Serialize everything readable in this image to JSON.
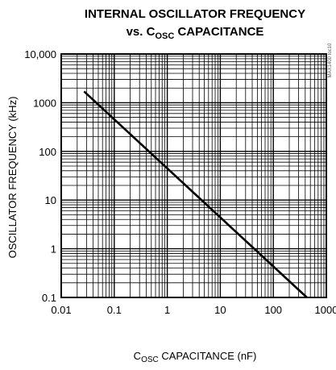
{
  "chart_data": {
    "type": "line",
    "title_line1": "INTERNAL OSCILLATOR FREQUENCY",
    "title_line2_prefix": "vs. C",
    "title_line2_sub": "OSC",
    "title_line2_suffix": " CAPACITANCE",
    "xlabel_prefix": "C",
    "xlabel_sub": "OSC",
    "xlabel_suffix": " CAPACITANCE (nF)",
    "ylabel": "OSCILLATOR FREQUENCY (kHz)",
    "x_scale": "log",
    "y_scale": "log",
    "xlim": [
      0.01,
      1000
    ],
    "ylim": [
      0.1,
      10000
    ],
    "x_ticks": [
      {
        "value": 0.01,
        "label": "0.01"
      },
      {
        "value": 0.1,
        "label": "0.1"
      },
      {
        "value": 1,
        "label": "1"
      },
      {
        "value": 10,
        "label": "10"
      },
      {
        "value": 100,
        "label": "100"
      },
      {
        "value": 1000,
        "label": "1000"
      }
    ],
    "y_ticks": [
      {
        "value": 0.1,
        "label": "0.1"
      },
      {
        "value": 1,
        "label": "1"
      },
      {
        "value": 10,
        "label": "10"
      },
      {
        "value": 100,
        "label": "100"
      },
      {
        "value": 1000,
        "label": "1000"
      },
      {
        "value": 10000,
        "label": "10,000"
      }
    ],
    "grid": true,
    "series": [
      {
        "x": [
          0.027,
          430
        ],
        "y": [
          1700,
          0.1
        ]
      }
    ],
    "watermark": "MAX1400 toc10"
  },
  "colors": {
    "line": "#000000",
    "grid": "#000000",
    "background": "#ffffff"
  }
}
